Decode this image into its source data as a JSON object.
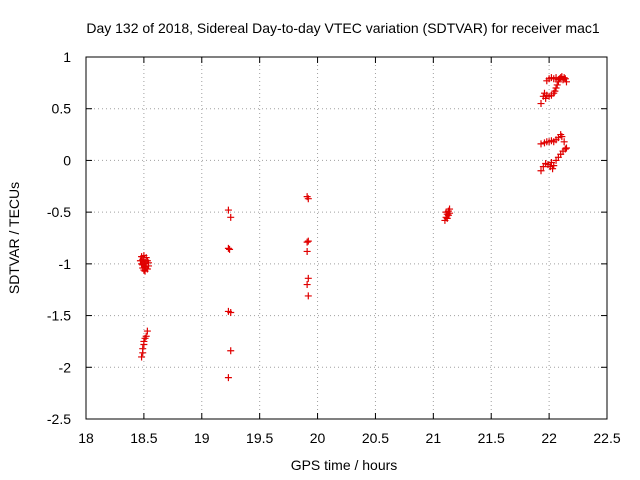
{
  "chart_data": {
    "type": "scatter",
    "title": "Day 132 of 2018, Sidereal Day-to-day VTEC variation (SDTVAR) for receiver mac1",
    "xlabel": "GPS time / hours",
    "ylabel": "SDTVAR / TECUs",
    "xlim": [
      18,
      22.5
    ],
    "ylim": [
      -2.5,
      1
    ],
    "xticks": [
      18,
      18.5,
      19,
      19.5,
      20,
      20.5,
      21,
      21.5,
      22,
      22.5
    ],
    "yticks": [
      -2.5,
      -2,
      -1.5,
      -1,
      -0.5,
      0,
      0.5,
      1
    ],
    "xtick_labels": [
      "18",
      "18.5",
      "19",
      "19.5",
      "20",
      "20.5",
      "21",
      "21.5",
      "22",
      "22.5"
    ],
    "ytick_labels": [
      "-2.5",
      "-2",
      "-1.5",
      "-1",
      "-0.5",
      "0",
      "0.5",
      "1"
    ],
    "grid": true,
    "marker": "+",
    "color": "#e00000",
    "series": [
      {
        "name": "SDTVAR",
        "points": [
          [
            18.48,
            -0.93
          ],
          [
            18.49,
            -0.96
          ],
          [
            18.5,
            -0.98
          ],
          [
            18.51,
            -1.0
          ],
          [
            18.52,
            -1.02
          ],
          [
            18.49,
            -1.04
          ],
          [
            18.5,
            -1.06
          ],
          [
            18.51,
            -1.07
          ],
          [
            18.53,
            -1.05
          ],
          [
            18.54,
            -1.02
          ],
          [
            18.48,
            -1.0
          ],
          [
            18.53,
            -0.97
          ],
          [
            18.5,
            -0.92
          ],
          [
            18.52,
            -0.94
          ],
          [
            18.54,
            -0.99
          ],
          [
            18.47,
            -0.97
          ],
          [
            18.51,
            -1.03
          ],
          [
            18.49,
            -1.01
          ],
          [
            18.48,
            -1.9
          ],
          [
            18.49,
            -1.82
          ],
          [
            18.5,
            -1.78
          ],
          [
            18.51,
            -1.72
          ],
          [
            18.52,
            -1.7
          ],
          [
            18.53,
            -1.65
          ],
          [
            18.5,
            -1.75
          ],
          [
            18.49,
            -1.86
          ],
          [
            19.23,
            -0.48
          ],
          [
            19.25,
            -0.55
          ],
          [
            19.23,
            -0.85
          ],
          [
            19.24,
            -0.86
          ],
          [
            19.23,
            -1.46
          ],
          [
            19.25,
            -1.47
          ],
          [
            19.25,
            -1.84
          ],
          [
            19.23,
            -2.1
          ],
          [
            19.91,
            -0.35
          ],
          [
            19.92,
            -0.37
          ],
          [
            19.91,
            -0.79
          ],
          [
            19.92,
            -0.78
          ],
          [
            19.91,
            -0.88
          ],
          [
            19.92,
            -1.14
          ],
          [
            19.91,
            -1.2
          ],
          [
            19.92,
            -1.31
          ],
          [
            21.1,
            -0.58
          ],
          [
            21.11,
            -0.55
          ],
          [
            21.12,
            -0.52
          ],
          [
            21.13,
            -0.49
          ],
          [
            21.14,
            -0.47
          ],
          [
            21.12,
            -0.56
          ],
          [
            21.13,
            -0.53
          ],
          [
            21.11,
            -0.5
          ],
          [
            21.14,
            -0.51
          ],
          [
            21.93,
            0.55
          ],
          [
            21.95,
            0.62
          ],
          [
            21.96,
            0.65
          ],
          [
            21.98,
            0.63
          ],
          [
            22.0,
            0.62
          ],
          [
            22.02,
            0.63
          ],
          [
            22.04,
            0.65
          ],
          [
            22.05,
            0.67
          ],
          [
            22.06,
            0.7
          ],
          [
            22.07,
            0.73
          ],
          [
            22.08,
            0.76
          ],
          [
            22.09,
            0.79
          ],
          [
            22.1,
            0.8
          ],
          [
            22.12,
            0.78
          ],
          [
            22.13,
            0.8
          ],
          [
            22.15,
            0.76
          ],
          [
            21.98,
            0.77
          ],
          [
            22.0,
            0.79
          ],
          [
            22.02,
            0.8
          ],
          [
            22.04,
            0.79
          ],
          [
            22.06,
            0.8
          ],
          [
            22.08,
            0.78
          ],
          [
            22.11,
            0.81
          ],
          [
            22.14,
            0.79
          ],
          [
            21.97,
            0.6
          ],
          [
            21.93,
            -0.1
          ],
          [
            21.95,
            -0.06
          ],
          [
            21.97,
            -0.03
          ],
          [
            21.99,
            -0.04
          ],
          [
            22.01,
            -0.06
          ],
          [
            22.03,
            -0.08
          ],
          [
            22.04,
            -0.05
          ],
          [
            22.06,
            0.0
          ],
          [
            22.08,
            0.03
          ],
          [
            22.1,
            0.06
          ],
          [
            22.12,
            0.09
          ],
          [
            22.14,
            0.11
          ],
          [
            21.93,
            0.16
          ],
          [
            21.96,
            0.17
          ],
          [
            21.98,
            0.18
          ],
          [
            22.0,
            0.18
          ],
          [
            22.02,
            0.19
          ],
          [
            22.04,
            0.18
          ],
          [
            22.06,
            0.2
          ],
          [
            22.08,
            0.22
          ],
          [
            22.1,
            0.25
          ],
          [
            22.11,
            0.23
          ],
          [
            22.13,
            0.18
          ],
          [
            22.15,
            0.12
          ],
          [
            22.02,
            -0.02
          ]
        ]
      }
    ]
  }
}
